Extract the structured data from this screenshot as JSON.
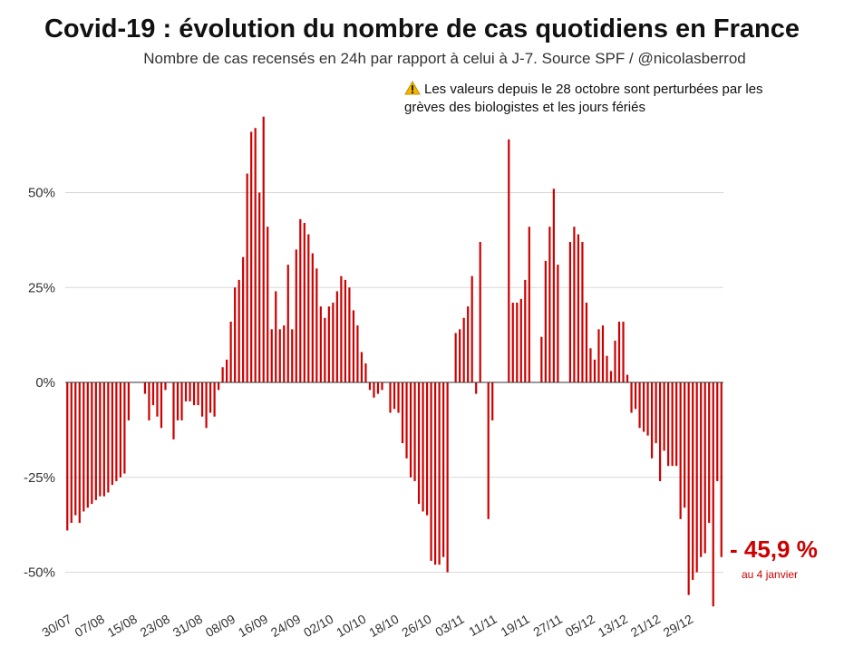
{
  "header": {
    "title": "Covid-19 : évolution du nombre de cas quotidiens en France",
    "subtitle": "Nombre de cas recensés en 24h par rapport à celui à J-7. Source SPF / @nicolasberrod"
  },
  "annotation": {
    "icon": "warning-icon",
    "text": "Les valeurs depuis le 28 octobre sont perturbées par les grèves des biologistes et les jours fériés"
  },
  "final_value": {
    "label": "- 45,9 %",
    "sublabel": "au 4 janvier"
  },
  "colors": {
    "bar": "#cc0000",
    "grid": "#d9d9d9",
    "axis": "#333333"
  },
  "chart_data": {
    "type": "bar",
    "title": "Covid-19 : évolution du nombre de cas quotidiens en France",
    "subtitle": "Nombre de cas recensés en 24h par rapport à celui à J-7. Source SPF / @nicolasberrod",
    "ylim": [
      -60,
      70
    ],
    "y_ticks": [
      -50,
      -25,
      0,
      25,
      50
    ],
    "y_tick_labels": [
      "-50%",
      "-25%",
      "0%",
      "25%",
      "50%"
    ],
    "x_tick_labels": [
      "30/07",
      "07/08",
      "15/08",
      "23/08",
      "31/08",
      "08/09",
      "16/09",
      "24/09",
      "02/10",
      "10/10",
      "18/10",
      "26/10",
      "03/11",
      "11/11",
      "19/11",
      "27/11",
      "05/12",
      "13/12",
      "21/12",
      "29/12"
    ],
    "x_tick_every": 8,
    "grid": true,
    "series": [
      {
        "values": [
          -39,
          -37,
          -35,
          -37,
          -34,
          -33,
          -32,
          -31,
          -30,
          -30,
          -29,
          -27,
          -26,
          -25,
          -24,
          -10,
          null,
          null,
          null,
          -3,
          -10,
          -6,
          -9,
          -12,
          -2,
          null,
          -15,
          -10,
          -10,
          -5,
          -5,
          -6,
          -6,
          -9,
          -12,
          -8,
          -9,
          -2,
          4,
          6,
          16,
          25,
          27,
          33,
          55,
          66,
          67,
          50,
          70,
          41,
          14,
          24,
          14,
          15,
          31,
          14,
          35,
          43,
          42,
          39,
          34,
          30,
          20,
          17,
          20,
          21,
          24,
          28,
          27,
          25,
          19,
          15,
          8,
          5,
          -2,
          -4,
          -3,
          -2,
          null,
          -8,
          -7,
          -8,
          -16,
          -20,
          -25,
          -26,
          -32,
          -34,
          -35,
          -47,
          -48,
          -48,
          -46,
          -50,
          null,
          13,
          14,
          17,
          20,
          28,
          -3,
          37,
          null,
          -36,
          -10,
          null,
          null,
          null,
          64,
          21,
          21,
          22,
          27,
          41,
          null,
          null,
          12,
          32,
          41,
          51,
          31,
          null,
          null,
          37,
          41,
          39,
          37,
          21,
          9,
          6,
          14,
          15,
          7,
          3,
          11,
          16,
          16,
          2,
          -8,
          -7,
          -12,
          -13,
          -14,
          -20,
          -16,
          -26,
          -18,
          -22,
          -22,
          -22,
          -36,
          -33,
          -56,
          -52,
          -50,
          -46,
          -45,
          -37,
          -59,
          -26,
          -46
        ]
      }
    ]
  }
}
